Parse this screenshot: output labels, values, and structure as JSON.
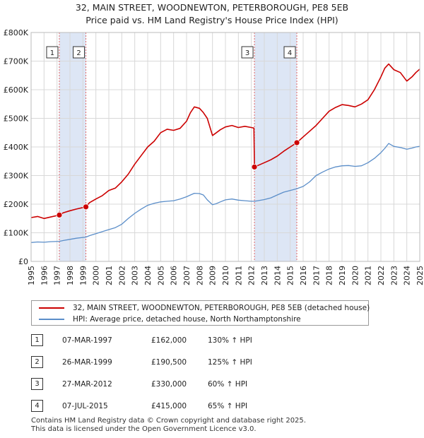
{
  "chart_data": {
    "type": "line",
    "title": "32, MAIN STREET, WOODNEWTON, PETERBOROUGH, PE8 5EB",
    "subtitle": "Price paid vs. HM Land Registry's House Price Index (HPI)",
    "xlim": [
      1995,
      2025
    ],
    "ylim": [
      0,
      800000
    ],
    "y_ticks": [
      0,
      100000,
      200000,
      300000,
      400000,
      500000,
      600000,
      700000,
      800000
    ],
    "y_tick_labels": [
      "£0",
      "£100K",
      "£200K",
      "£300K",
      "£400K",
      "£500K",
      "£600K",
      "£700K",
      "£800K"
    ],
    "x_ticks": [
      1995,
      1996,
      1997,
      1998,
      1999,
      2000,
      2001,
      2002,
      2003,
      2004,
      2005,
      2006,
      2007,
      2008,
      2009,
      2010,
      2011,
      2012,
      2013,
      2014,
      2015,
      2016,
      2017,
      2018,
      2019,
      2020,
      2021,
      2022,
      2023,
      2024,
      2025
    ],
    "x_tick_labels": [
      "1995",
      "1996",
      "1997",
      "1998",
      "1999",
      "2000",
      "2001",
      "2002",
      "2003",
      "2004",
      "2005",
      "2006",
      "2007",
      "2008",
      "2009",
      "2010",
      "2011",
      "2012",
      "2013",
      "2014",
      "2015",
      "2016",
      "2017",
      "2018",
      "2019",
      "2020",
      "2021",
      "2022",
      "2023",
      "2024",
      "2025"
    ],
    "grid": true,
    "colors": {
      "property": "#cc0000",
      "hpi": "#5b8ec9",
      "shade": "#dde6f5",
      "marker_line": "#e06666"
    },
    "series": [
      {
        "name": "32, MAIN STREET, WOODNEWTON, PETERBOROUGH, PE8 5EB (detached house)",
        "x": [
          1995.0,
          1995.5,
          1996.0,
          1996.5,
          1997.18,
          1997.5,
          1998.0,
          1998.5,
          1999.23,
          1999.5,
          2000.0,
          2000.5,
          2001.0,
          2001.5,
          2002.0,
          2002.5,
          2003.0,
          2003.5,
          2004.0,
          2004.5,
          2005.0,
          2005.5,
          2006.0,
          2006.5,
          2007.0,
          2007.3,
          2007.6,
          2008.0,
          2008.3,
          2008.6,
          2009.0,
          2009.3,
          2009.6,
          2010.0,
          2010.5,
          2011.0,
          2011.5,
          2012.0,
          2012.2,
          2012.24,
          2012.5,
          2013.0,
          2013.5,
          2014.0,
          2014.5,
          2015.0,
          2015.51,
          2016.0,
          2016.5,
          2017.0,
          2017.5,
          2018.0,
          2018.5,
          2019.0,
          2019.5,
          2020.0,
          2020.5,
          2021.0,
          2021.5,
          2022.0,
          2022.3,
          2022.6,
          2023.0,
          2023.5,
          2024.0,
          2024.4,
          2024.7,
          2025.0
        ],
        "y": [
          153000,
          157000,
          150000,
          155000,
          162000,
          170000,
          177000,
          183000,
          190500,
          205000,
          218000,
          230000,
          248000,
          256000,
          278000,
          305000,
          340000,
          370000,
          400000,
          420000,
          450000,
          462000,
          458000,
          465000,
          490000,
          520000,
          540000,
          535000,
          520000,
          500000,
          440000,
          450000,
          460000,
          470000,
          475000,
          468000,
          472000,
          468000,
          466000,
          330000,
          335000,
          345000,
          355000,
          368000,
          385000,
          400000,
          415000,
          435000,
          455000,
          475000,
          500000,
          525000,
          538000,
          548000,
          545000,
          540000,
          550000,
          565000,
          600000,
          645000,
          675000,
          690000,
          670000,
          660000,
          630000,
          645000,
          660000,
          672000
        ]
      },
      {
        "name": "HPI: Average price, detached house, North Northamptonshire",
        "x": [
          1995.0,
          1995.5,
          1996.0,
          1996.5,
          1997.18,
          1997.5,
          1998.0,
          1998.5,
          1999.23,
          1999.5,
          2000.0,
          2000.5,
          2001.0,
          2001.5,
          2002.0,
          2002.5,
          2003.0,
          2003.5,
          2004.0,
          2004.5,
          2005.0,
          2005.5,
          2006.0,
          2006.5,
          2007.0,
          2007.3,
          2007.6,
          2008.0,
          2008.3,
          2008.6,
          2009.0,
          2009.3,
          2009.6,
          2010.0,
          2010.5,
          2011.0,
          2011.5,
          2012.0,
          2012.24,
          2012.5,
          2013.0,
          2013.5,
          2014.0,
          2014.5,
          2015.0,
          2015.51,
          2016.0,
          2016.5,
          2017.0,
          2017.5,
          2018.0,
          2018.5,
          2019.0,
          2019.5,
          2020.0,
          2020.5,
          2021.0,
          2021.5,
          2022.0,
          2022.3,
          2022.6,
          2023.0,
          2023.5,
          2024.0,
          2024.4,
          2024.7,
          2025.0
        ],
        "y": [
          66000,
          68000,
          67000,
          69000,
          70000,
          73000,
          77000,
          81000,
          85000,
          90000,
          97000,
          104000,
          111000,
          118000,
          130000,
          150000,
          168000,
          183000,
          196000,
          203000,
          208000,
          210000,
          212000,
          218000,
          226000,
          232000,
          238000,
          237000,
          232000,
          215000,
          198000,
          202000,
          208000,
          215000,
          218000,
          214000,
          212000,
          210000,
          210000,
          212000,
          216000,
          222000,
          232000,
          242000,
          248000,
          254000,
          262000,
          278000,
          300000,
          312000,
          323000,
          330000,
          334000,
          335000,
          332000,
          334000,
          345000,
          360000,
          380000,
          395000,
          412000,
          402000,
          398000,
          392000,
          396000,
          400000,
          402000
        ]
      }
    ],
    "sales": [
      {
        "label": "1",
        "x": 1997.18,
        "y": 162000,
        "date": "07-MAR-1997",
        "price": "£162,000",
        "hpi": "130% ↑ HPI"
      },
      {
        "label": "2",
        "x": 1999.23,
        "y": 190500,
        "date": "26-MAR-1999",
        "price": "£190,500",
        "hpi": "125% ↑ HPI"
      },
      {
        "label": "3",
        "x": 2012.24,
        "y": 330000,
        "date": "27-MAR-2012",
        "price": "£330,000",
        "hpi": "60% ↑ HPI"
      },
      {
        "label": "4",
        "x": 2015.51,
        "y": 415000,
        "date": "07-JUL-2015",
        "price": "£415,000",
        "hpi": "65% ↑ HPI"
      }
    ],
    "shaded_periods": [
      [
        1997.18,
        1999.23
      ],
      [
        2012.24,
        2015.51
      ]
    ]
  },
  "legend": {
    "property": "32, MAIN STREET, WOODNEWTON, PETERBOROUGH, PE8 5EB (detached house)",
    "hpi": "HPI: Average price, detached house, North Northamptonshire"
  },
  "footer": {
    "line1": "Contains HM Land Registry data © Crown copyright and database right 2025.",
    "line2": "This data is licensed under the Open Government Licence v3.0."
  }
}
